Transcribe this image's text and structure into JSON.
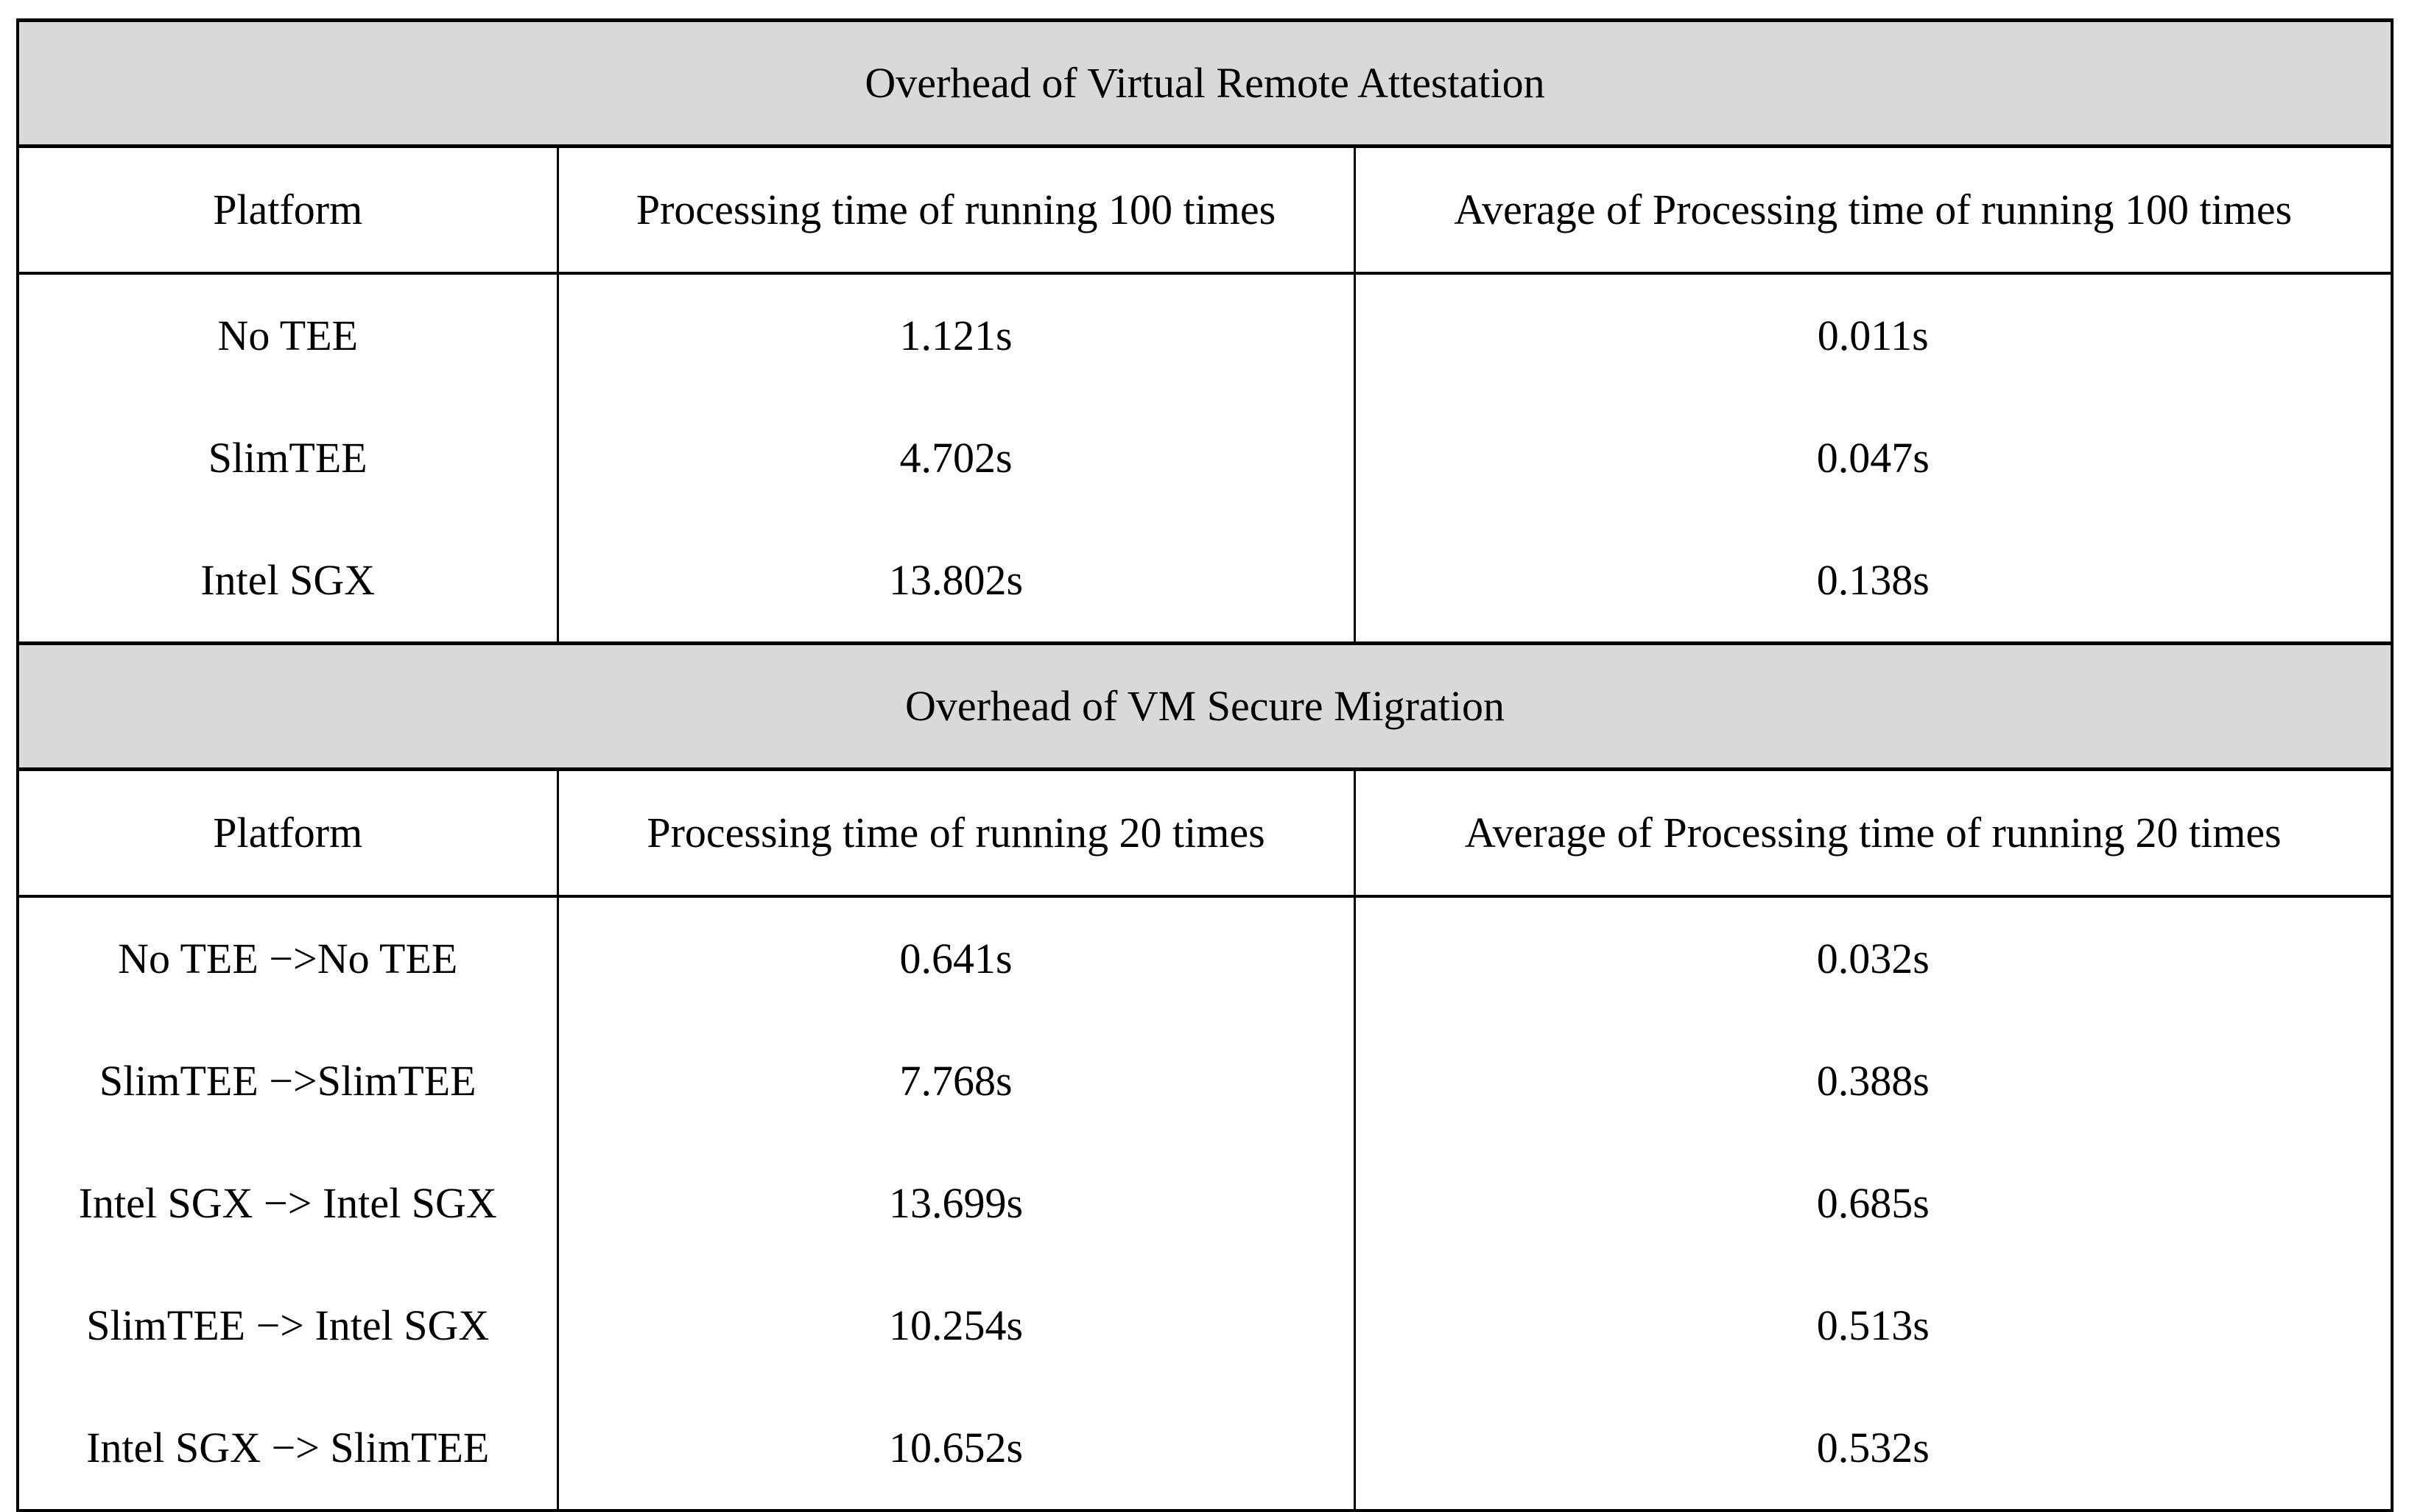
{
  "table": {
    "sections": [
      {
        "title": "Overhead of Virtual Remote Attestation",
        "columns": [
          "Platform",
          "Processing time of running 100 times",
          "Average of Processing time of running 100 times"
        ],
        "rows": [
          {
            "platform": "No TEE",
            "total": "1.121s",
            "average": "0.011s"
          },
          {
            "platform": "SlimTEE",
            "total": "4.702s",
            "average": "0.047s"
          },
          {
            "platform": "Intel SGX",
            "total": "13.802s",
            "average": "0.138s"
          }
        ]
      },
      {
        "title": "Overhead of VM Secure Migration",
        "columns": [
          "Platform",
          "Processing time of running 20 times",
          "Average of Processing time of running 20 times"
        ],
        "rows": [
          {
            "platform": "No TEE −>No TEE",
            "total": "0.641s",
            "average": "0.032s"
          },
          {
            "platform": "SlimTEE −>SlimTEE",
            "total": "7.768s",
            "average": "0.388s"
          },
          {
            "platform": "Intel SGX −> Intel SGX",
            "total": "13.699s",
            "average": "0.685s"
          },
          {
            "platform": "SlimTEE −> Intel SGX",
            "total": "10.254s",
            "average": "0.513s"
          },
          {
            "platform": "Intel SGX −> SlimTEE",
            "total": "10.652s",
            "average": "0.532s"
          }
        ]
      }
    ]
  },
  "colors": {
    "section_band_background": "#d9d9d9",
    "border": "#000000",
    "page_background": "#ffffff"
  }
}
